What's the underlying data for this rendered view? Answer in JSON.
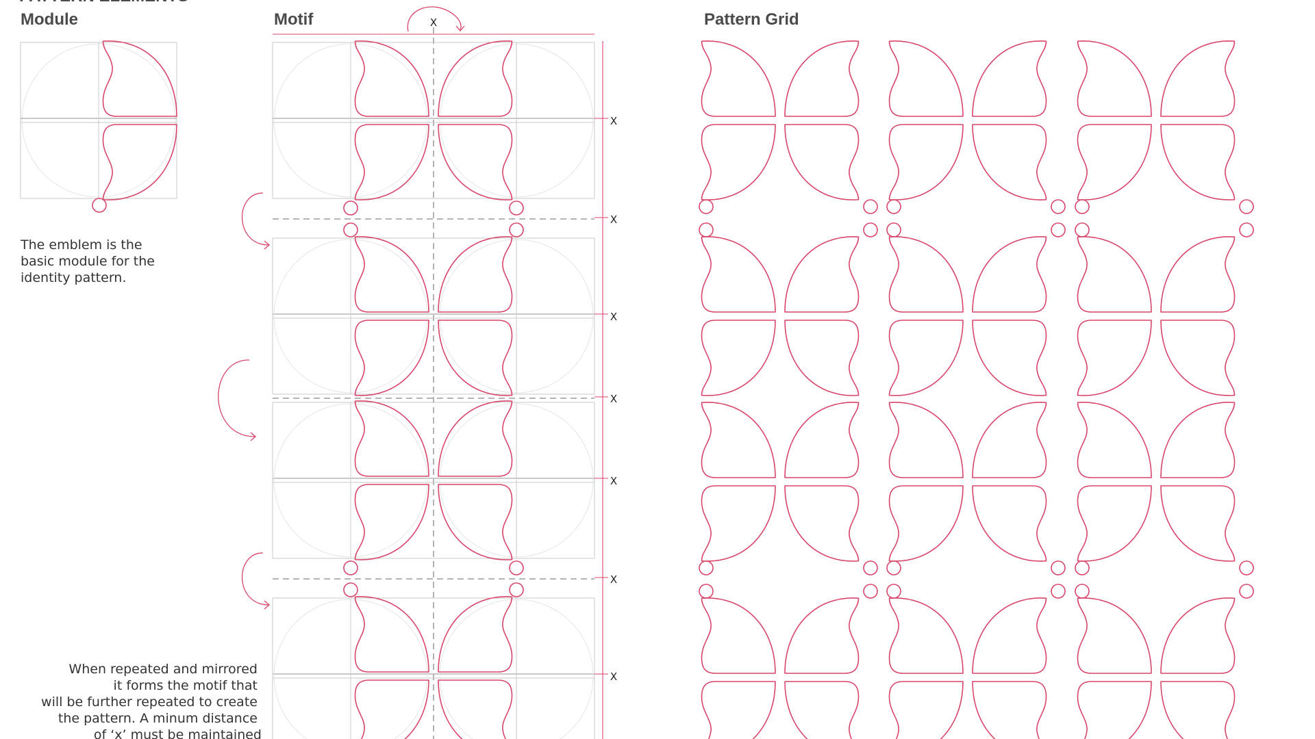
{
  "sections": {
    "module_title": "Module",
    "motif_title": "Motif",
    "grid_title": "Pattern Grid",
    "cut_top_heading": "PATTERN ELEMENTS"
  },
  "module_caption": [
    "The emblem is the",
    "basic module for the",
    "identity pattern."
  ],
  "motif_caption": [
    "When repeated and mirrored",
    "it forms the motif that",
    "will be further repeated to create",
    "the pattern. A minum distance",
    "of ‘x’ must be maintained"
  ],
  "distance_marker": "X",
  "colors": {
    "accent": "#d8456a",
    "guide": "#c8c8c8",
    "heading": "#4a4a4a"
  }
}
